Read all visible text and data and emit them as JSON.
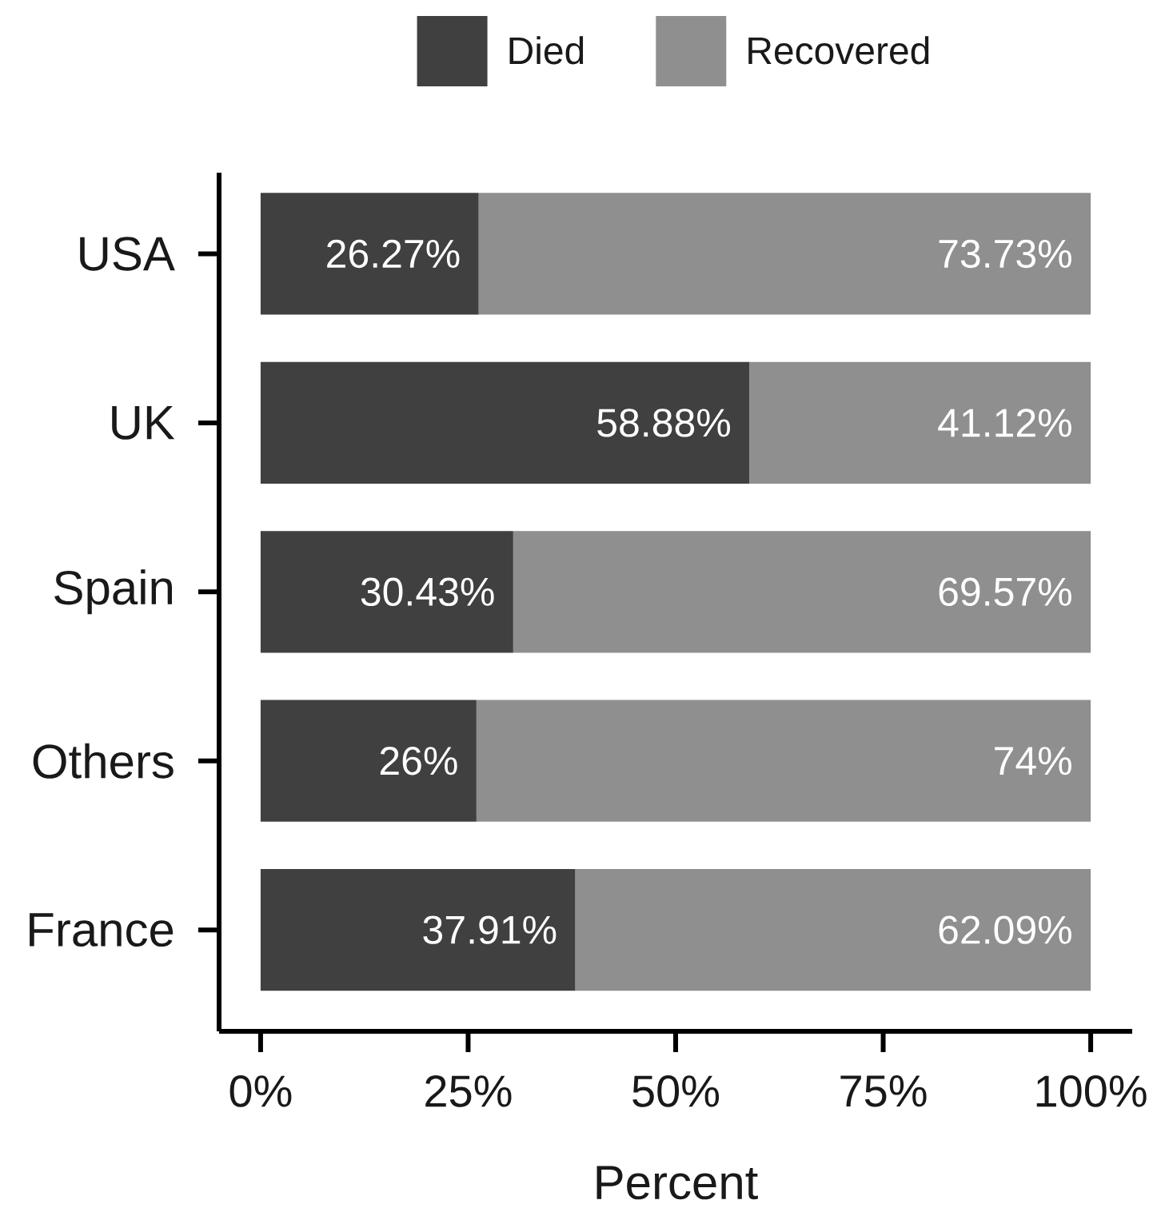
{
  "chart_data": {
    "type": "bar",
    "orientation": "horizontal",
    "stacked": true,
    "categories": [
      "USA",
      "UK",
      "Spain",
      "Others",
      "France"
    ],
    "series": [
      {
        "name": "Died",
        "color": "#404040",
        "values": [
          26.27,
          58.88,
          30.43,
          26,
          37.91
        ],
        "value_labels": [
          "26.27%",
          "58.88%",
          "30.43%",
          "26%",
          "37.91%"
        ]
      },
      {
        "name": "Recovered",
        "color": "#8f8f8f",
        "values": [
          73.73,
          41.12,
          69.57,
          74,
          62.09
        ],
        "value_labels": [
          "73.73%",
          "41.12%",
          "69.57%",
          "74%",
          "62.09%"
        ]
      }
    ],
    "xlabel": "Percent",
    "xlim": [
      -5,
      105
    ],
    "xticks": [
      {
        "value": 0,
        "label": "0%"
      },
      {
        "value": 25,
        "label": "25%"
      },
      {
        "value": 50,
        "label": "50%"
      },
      {
        "value": 75,
        "label": "75%"
      },
      {
        "value": 100,
        "label": "100%"
      }
    ],
    "legend": "top"
  }
}
